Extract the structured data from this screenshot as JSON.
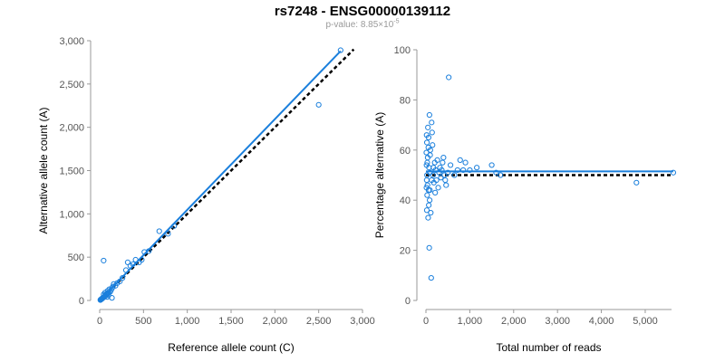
{
  "title": "rs7248 - ENSG00000139112",
  "subtitle": {
    "prefix": "p-value: 8.85×10",
    "exponent": "-5"
  },
  "colors": {
    "points": "#1a7fdc",
    "fit_line": "#1a7fdc",
    "reference_line": "#000000",
    "axis": "#999999",
    "text": "#000000"
  },
  "chart_data": [
    {
      "type": "scatter",
      "xlabel": "Reference allele count (C)",
      "ylabel": "Alternative allele count (A)",
      "xlim": [
        0,
        3000
      ],
      "ylim": [
        0,
        3000
      ],
      "x_ticks": [
        0,
        500,
        1000,
        1500,
        2000,
        2500,
        3000
      ],
      "y_ticks": [
        0,
        500,
        1000,
        1500,
        2000,
        2500,
        3000
      ],
      "x_tick_labels": [
        "0",
        "500",
        "1,000",
        "1,500",
        "2,000",
        "2,500",
        "3,000"
      ],
      "y_tick_labels": [
        "0",
        "500",
        "1,000",
        "1,500",
        "2,000",
        "2,500",
        "3,000"
      ],
      "grid": false,
      "points": [
        [
          2750,
          2890
        ],
        [
          2500,
          2260
        ],
        [
          850,
          860
        ],
        [
          780,
          770
        ],
        [
          680,
          800
        ],
        [
          560,
          570
        ],
        [
          510,
          560
        ],
        [
          480,
          470
        ],
        [
          450,
          440
        ],
        [
          410,
          470
        ],
        [
          380,
          420
        ],
        [
          350,
          400
        ],
        [
          320,
          440
        ],
        [
          300,
          350
        ],
        [
          260,
          260
        ],
        [
          230,
          220
        ],
        [
          200,
          200
        ],
        [
          180,
          170
        ],
        [
          160,
          190
        ],
        [
          150,
          160
        ],
        [
          140,
          140
        ],
        [
          130,
          120
        ],
        [
          120,
          100
        ],
        [
          110,
          130
        ],
        [
          100,
          90
        ],
        [
          95,
          80
        ],
        [
          90,
          110
        ],
        [
          80,
          75
        ],
        [
          75,
          60
        ],
        [
          70,
          70
        ],
        [
          65,
          55
        ],
        [
          60,
          50
        ],
        [
          55,
          45
        ],
        [
          50,
          40
        ],
        [
          45,
          460
        ],
        [
          40,
          35
        ],
        [
          35,
          30
        ],
        [
          30,
          25
        ],
        [
          28,
          20
        ],
        [
          25,
          22
        ],
        [
          20,
          15
        ],
        [
          15,
          12
        ],
        [
          12,
          10
        ],
        [
          10,
          8
        ],
        [
          8,
          5
        ],
        [
          140,
          30
        ],
        [
          60,
          90
        ],
        [
          100,
          60
        ],
        [
          85,
          40
        ],
        [
          45,
          70
        ]
      ],
      "fit_line": [
        [
          0,
          0
        ],
        [
          2750,
          2880
        ]
      ],
      "reference_line": [
        [
          0,
          0
        ],
        [
          2900,
          2900
        ]
      ]
    },
    {
      "type": "scatter",
      "xlabel": "Total number of reads",
      "ylabel": "Percentage alternative (A)",
      "xlim": [
        0,
        5600
      ],
      "ylim": [
        0,
        100
      ],
      "x_ticks": [
        0,
        1000,
        2000,
        3000,
        4000,
        5000
      ],
      "y_ticks": [
        0,
        20,
        40,
        60,
        80,
        100
      ],
      "x_tick_labels": [
        "0",
        "1,000",
        "2,000",
        "3,000",
        "4,000",
        "5,000"
      ],
      "y_tick_labels": [
        "0",
        "20",
        "40",
        "60",
        "80",
        "100"
      ],
      "grid": false,
      "points": [
        [
          5640,
          51
        ],
        [
          4800,
          47
        ],
        [
          1700,
          50
        ],
        [
          1600,
          51
        ],
        [
          1500,
          54
        ],
        [
          1160,
          53
        ],
        [
          1000,
          52
        ],
        [
          900,
          55
        ],
        [
          850,
          52
        ],
        [
          780,
          56
        ],
        [
          720,
          52
        ],
        [
          650,
          50
        ],
        [
          560,
          54
        ],
        [
          520,
          89
        ],
        [
          500,
          51
        ],
        [
          460,
          46
        ],
        [
          440,
          48
        ],
        [
          420,
          50
        ],
        [
          400,
          57
        ],
        [
          380,
          55
        ],
        [
          360,
          52
        ],
        [
          340,
          49
        ],
        [
          320,
          53
        ],
        [
          300,
          51
        ],
        [
          280,
          45
        ],
        [
          260,
          56
        ],
        [
          240,
          48
        ],
        [
          220,
          52
        ],
        [
          200,
          55
        ],
        [
          180,
          47
        ],
        [
          160,
          50
        ],
        [
          150,
          62
        ],
        [
          140,
          67
        ],
        [
          130,
          71
        ],
        [
          120,
          9
        ],
        [
          110,
          35
        ],
        [
          100,
          60
        ],
        [
          95,
          58
        ],
        [
          90,
          44
        ],
        [
          85,
          40
        ],
        [
          80,
          74
        ],
        [
          75,
          21
        ],
        [
          70,
          53
        ],
        [
          65,
          38
        ],
        [
          60,
          65
        ],
        [
          55,
          61
        ],
        [
          50,
          33
        ],
        [
          45,
          69
        ],
        [
          40,
          57
        ],
        [
          35,
          46
        ],
        [
          30,
          55
        ],
        [
          28,
          42
        ],
        [
          25,
          50
        ],
        [
          22,
          63
        ],
        [
          20,
          36
        ],
        [
          18,
          48
        ],
        [
          16,
          66
        ],
        [
          14,
          54
        ],
        [
          12,
          45
        ],
        [
          10,
          59
        ],
        [
          60,
          44
        ],
        [
          90,
          51
        ],
        [
          130,
          48
        ],
        [
          170,
          53
        ],
        [
          210,
          43
        ]
      ],
      "fit_line": [
        [
          0,
          51.5
        ],
        [
          5640,
          51.5
        ]
      ],
      "reference_line": [
        [
          0,
          50
        ],
        [
          5640,
          50
        ]
      ]
    }
  ]
}
